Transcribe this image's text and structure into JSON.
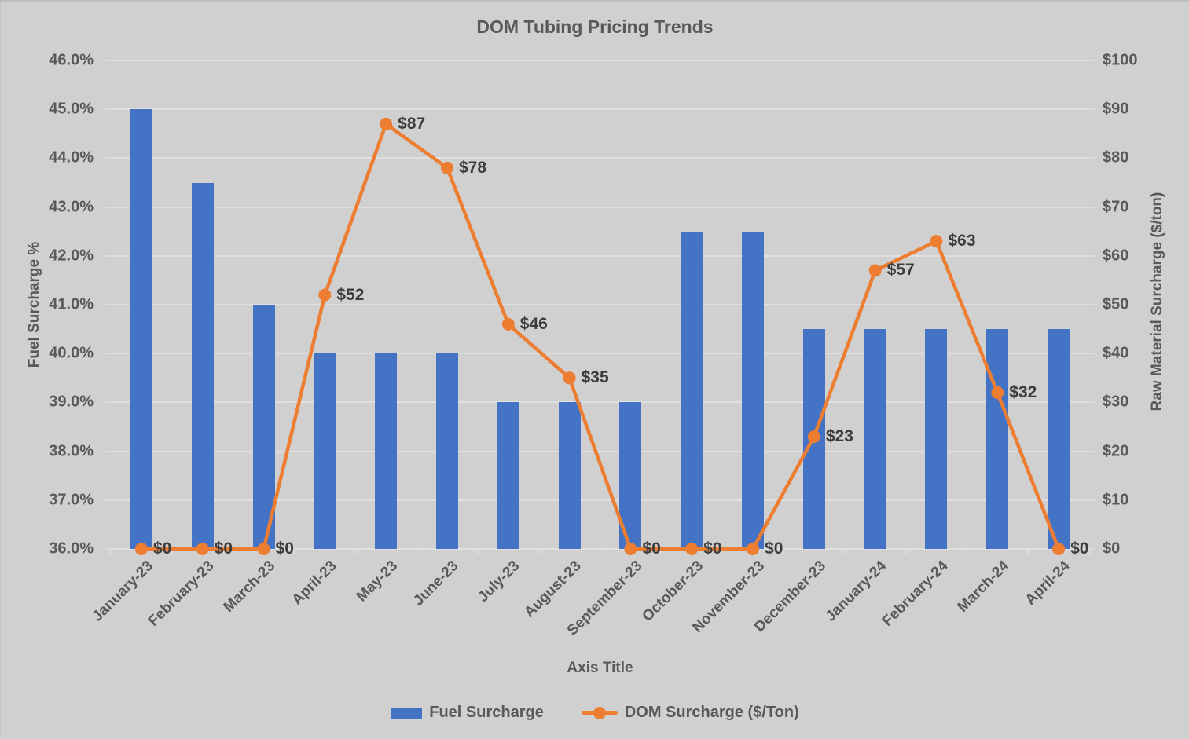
{
  "title": "DOM Tubing Pricing Trends",
  "colors": {
    "background": "#D0D0D0",
    "bar": "#4472C4",
    "line": "#ED7D31",
    "grid": "#E0E0E0",
    "tick_text": "#595959",
    "data_label_text": "#3C3C3C"
  },
  "chart_data": {
    "type": "combo_bar_line",
    "title": "DOM Tubing Pricing Trends",
    "xlabel": "Axis Title",
    "ylabel_left": "Fuel Surcharge %",
    "ylabel_right": "Raw Material Surcharge ($/ton)",
    "ylim_left": [
      36.0,
      46.0
    ],
    "ylim_right": [
      0,
      100
    ],
    "grid": "horizontal",
    "legend_position": "bottom",
    "categories": [
      "January-23",
      "February-23",
      "March-23",
      "April-23",
      "May-23",
      "June-23",
      "July-23",
      "August-23",
      "September-23",
      "October-23",
      "November-23",
      "December-23",
      "January-24",
      "February-24",
      "March-24",
      "April-24"
    ],
    "left_ticks": [
      "46.0%",
      "45.0%",
      "44.0%",
      "43.0%",
      "42.0%",
      "41.0%",
      "40.0%",
      "39.0%",
      "38.0%",
      "37.0%",
      "36.0%"
    ],
    "right_ticks": [
      "$100",
      "$90",
      "$80",
      "$70",
      "$60",
      "$50",
      "$40",
      "$30",
      "$20",
      "$10",
      "$0"
    ],
    "series": [
      {
        "name": "Fuel Surcharge",
        "type": "bar",
        "axis": "left",
        "unit": "%",
        "values": [
          45.0,
          43.5,
          41.0,
          40.0,
          40.0,
          40.0,
          39.0,
          39.0,
          39.0,
          42.5,
          42.5,
          40.5,
          40.5,
          40.5,
          40.5,
          40.5
        ]
      },
      {
        "name": "DOM Surcharge ($/Ton)",
        "type": "line",
        "axis": "right",
        "unit": "$/ton",
        "values": [
          0,
          0,
          0,
          52,
          87,
          78,
          46,
          35,
          0,
          0,
          0,
          23,
          57,
          63,
          32,
          0
        ],
        "data_labels": [
          "$0",
          "$0",
          "$0",
          "$52",
          "$87",
          "$78",
          "$46",
          "$35",
          "$0",
          "$0",
          "$0",
          "$23",
          "$57",
          "$63",
          "$32",
          "$0"
        ]
      }
    ]
  },
  "legend": {
    "items": [
      {
        "label": "Fuel Surcharge",
        "marker": "bar-swatch"
      },
      {
        "label": "DOM Surcharge ($/Ton)",
        "marker": "line-dot"
      }
    ]
  }
}
